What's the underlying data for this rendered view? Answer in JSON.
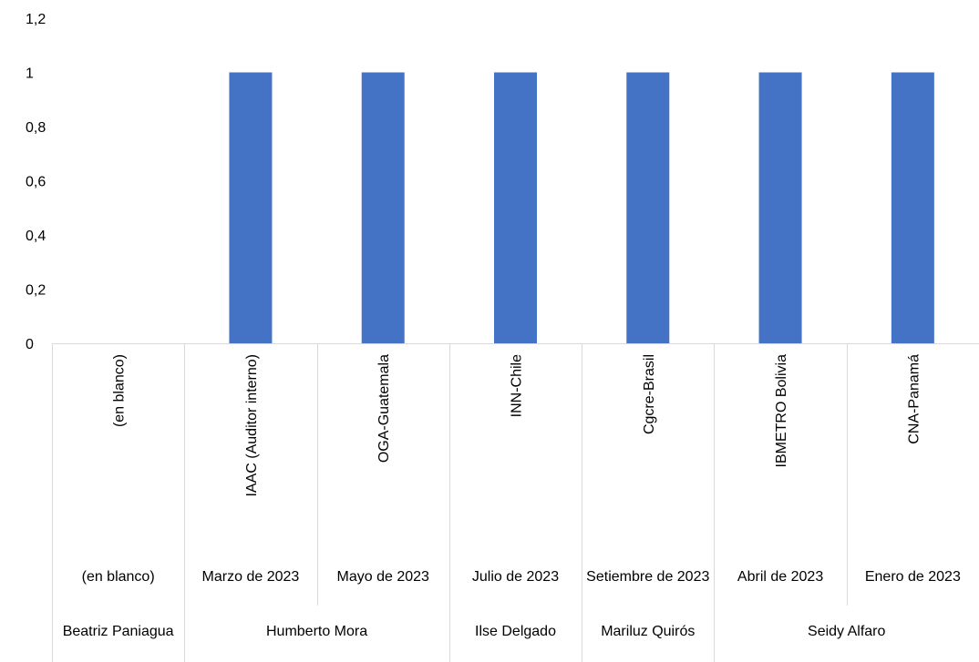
{
  "chart_data": {
    "type": "bar",
    "title": "",
    "xlabel": "",
    "ylabel": "",
    "ylim": [
      0,
      1.2
    ],
    "yticks": [
      "0",
      "0,2",
      "0,4",
      "0,6",
      "0,8",
      "1",
      "1,2"
    ],
    "grid": false,
    "legend": "none",
    "bar_color": "#4472C4",
    "categories": [
      {
        "label": "(en blanco)",
        "date": "(en blanco)",
        "person": "Beatriz Paniagua",
        "value": 0
      },
      {
        "label": "IAAC (Auditor interno)",
        "date": "Marzo de 2023",
        "person": "Humberto Mora",
        "value": 1
      },
      {
        "label": "OGA-Guatemala",
        "date": "Mayo de 2023",
        "person": "Humberto Mora",
        "value": 1
      },
      {
        "label": "INN-Chile",
        "date": "Julio de 2023",
        "person": "Ilse Delgado",
        "value": 1
      },
      {
        "label": "Cgcre-Brasil",
        "date": "Setiembre de 2023",
        "person": "Mariluz Quirós",
        "value": 1
      },
      {
        "label": "IBMETRO Bolivia",
        "date": "Abril de 2023",
        "person": "Seidy Alfaro",
        "value": 1
      },
      {
        "label": "CNA-Panamá",
        "date": "Enero de 2023",
        "person": "Seidy Alfaro",
        "value": 1
      }
    ],
    "date_groups": [
      {
        "label": "(en blanco)",
        "span": 1
      },
      {
        "label": "Marzo de 2023",
        "span": 1
      },
      {
        "label": "Mayo de 2023",
        "span": 1
      },
      {
        "label": "Julio de 2023",
        "span": 1
      },
      {
        "label": "Setiembre de 2023",
        "span": 1
      },
      {
        "label": "Abril de 2023",
        "span": 1
      },
      {
        "label": "Enero de 2023",
        "span": 1
      }
    ],
    "person_groups": [
      {
        "label": "Beatriz Paniagua",
        "span": 1
      },
      {
        "label": "Humberto Mora",
        "span": 2
      },
      {
        "label": "Ilse Delgado",
        "span": 1
      },
      {
        "label": "Mariluz Quirós",
        "span": 1
      },
      {
        "label": "Seidy Alfaro",
        "span": 2
      }
    ]
  }
}
